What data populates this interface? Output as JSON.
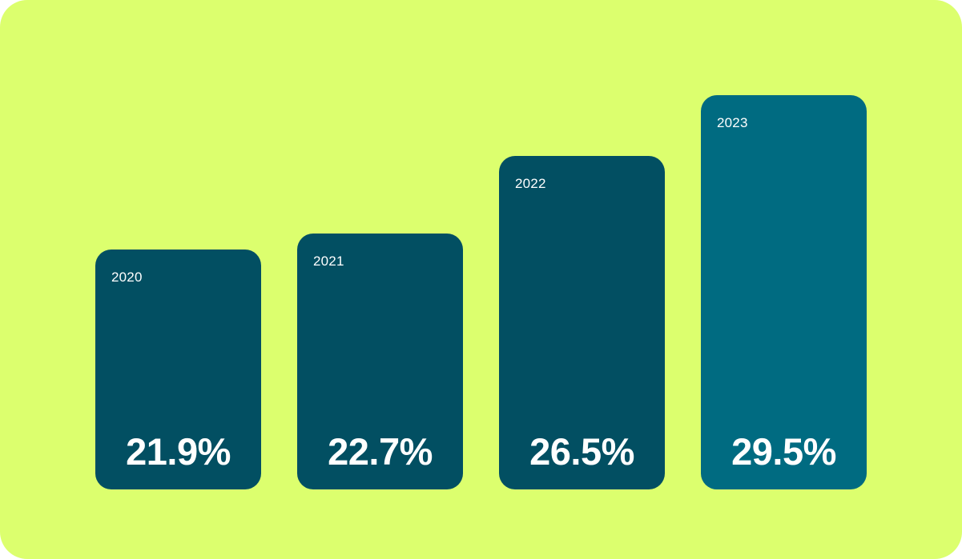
{
  "colors": {
    "background": "#dcff6e",
    "bar": "#024f62",
    "highlight_bar": "#006b81",
    "text": "#ffffff"
  },
  "chart_data": {
    "type": "bar",
    "categories": [
      "2020",
      "2021",
      "2022",
      "2023"
    ],
    "values": [
      21.9,
      22.7,
      26.5,
      29.5
    ],
    "value_labels": [
      "21.9%",
      "22.7%",
      "26.5%",
      "29.5%"
    ],
    "highlight_index": 3,
    "unit": "%",
    "grid": false,
    "legend": "none"
  }
}
